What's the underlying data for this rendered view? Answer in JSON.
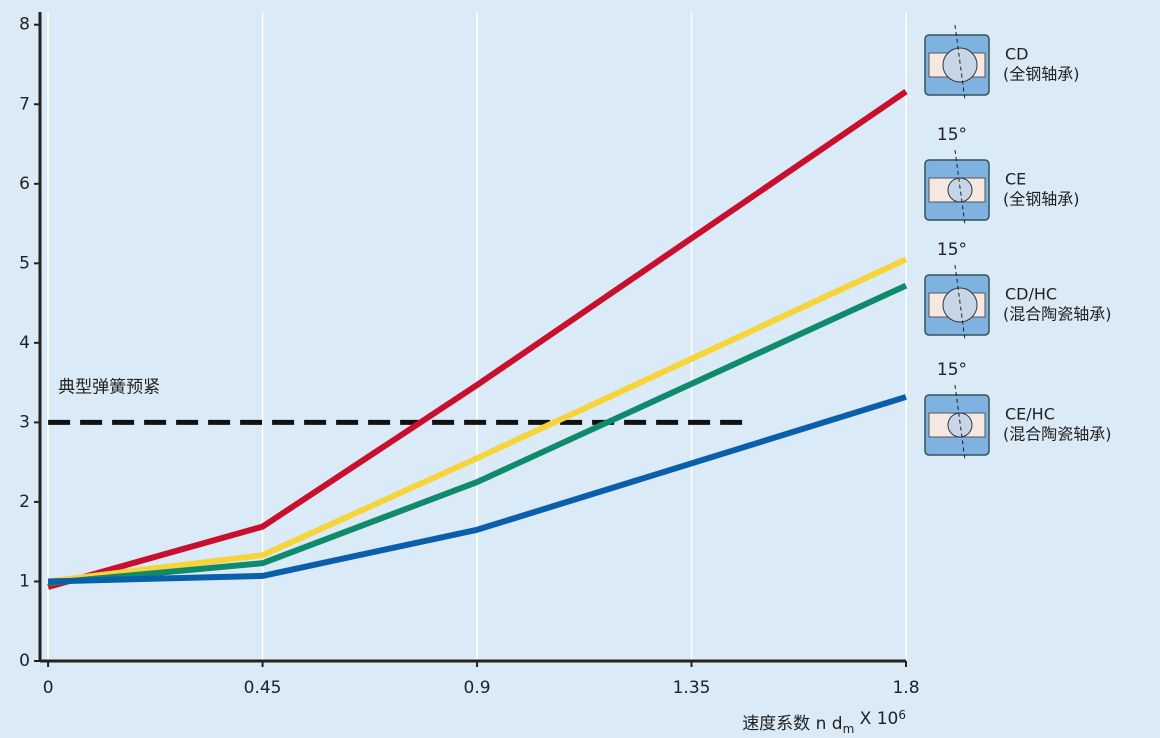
{
  "chart_data": {
    "type": "line",
    "x": [
      0,
      0.45,
      0.9,
      1.8
    ],
    "series": [
      {
        "name": "CD",
        "description": "(全钢轴承)",
        "color": "#c8102e",
        "values": [
          0.93,
          1.69,
          3.47,
          7.16
        ]
      },
      {
        "name": "CE",
        "description": "(全钢轴承)",
        "angle": "15°",
        "color": "#f7d43a",
        "values": [
          1.0,
          1.33,
          2.55,
          5.05
        ]
      },
      {
        "name": "CD/HC",
        "description": "(混合陶瓷轴承)",
        "angle": "15°",
        "color": "#0f8a6a",
        "values": [
          0.98,
          1.23,
          2.25,
          4.72
        ]
      },
      {
        "name": "CE/HC",
        "description": "(混合陶瓷轴承)",
        "angle": "15°",
        "color": "#0a5faa",
        "values": [
          1.0,
          1.07,
          1.65,
          3.32
        ]
      }
    ],
    "xlim": [
      -0.017,
      1.8
    ],
    "ylim": [
      0,
      8.16
    ],
    "xticks": [
      0,
      0.45,
      0.9,
      1.35,
      1.8
    ],
    "yticks": [
      0,
      1,
      2,
      3,
      4,
      5,
      6,
      7,
      8
    ],
    "grid": "x",
    "xlabel": [
      "速度系数 n d",
      "m",
      " X 10",
      "6"
    ],
    "reference_line": {
      "label": "典型弹簧预紧",
      "y": 3,
      "x": [
        0,
        1.47
      ]
    }
  }
}
